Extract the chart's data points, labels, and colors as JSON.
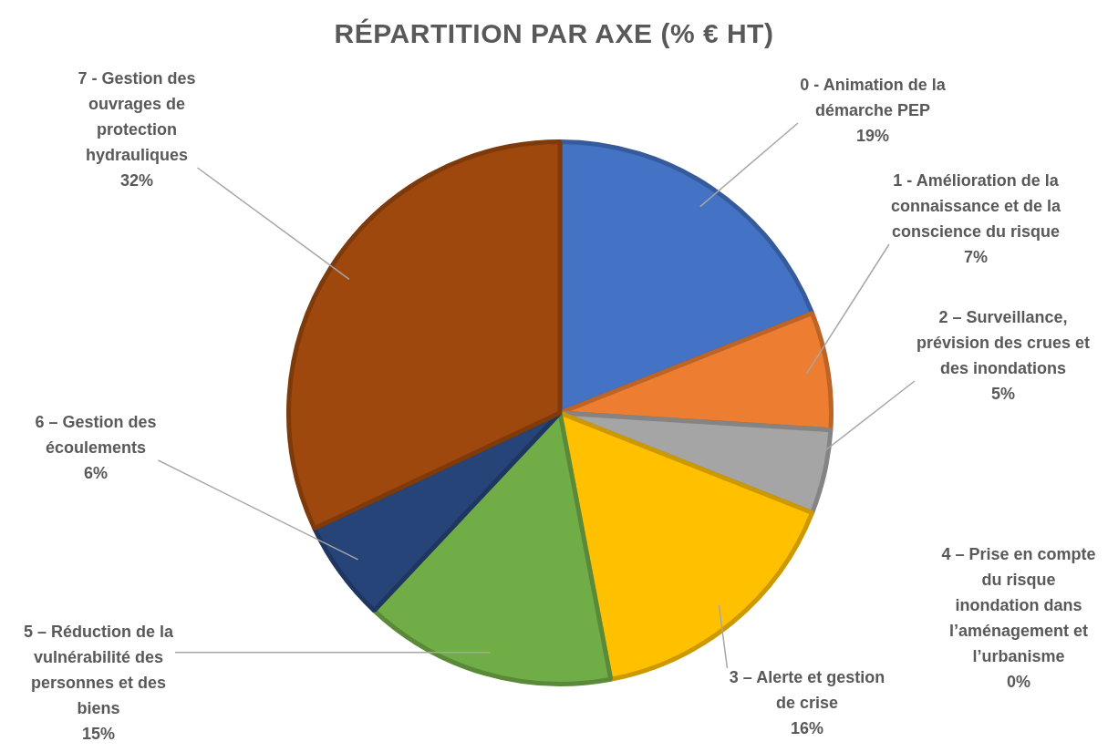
{
  "chart_data": {
    "type": "pie",
    "title": "RÉPARTITION PAR AXE (% € HT)",
    "categories": [
      "0 - Animation de la démarche PEP",
      "1 - Amélioration de la connaissance et de la conscience du risque",
      "2 – Surveillance, prévision des crues et des inondations",
      "3 – Alerte et gestion de crise",
      "4 – Prise en compte du risque inondation dans l’aménagement et l’urbanisme",
      "5 – Réduction de la vulnérabilité des personnes et des biens",
      "6 – Gestion des écoulements",
      "7 - Gestion des ouvrages de protection hydrauliques"
    ],
    "values": [
      19,
      7,
      5,
      16,
      0,
      15,
      6,
      32
    ],
    "colors": [
      "#4472c4",
      "#ed7d31",
      "#a5a5a5",
      "#ffc000",
      "#5b9bd5",
      "#70ad47",
      "#264478",
      "#9e480e"
    ],
    "value_labels": [
      "19%",
      "7%",
      "5%",
      "16%",
      "0%",
      "15%",
      "6%",
      "32%"
    ],
    "legend": false
  }
}
